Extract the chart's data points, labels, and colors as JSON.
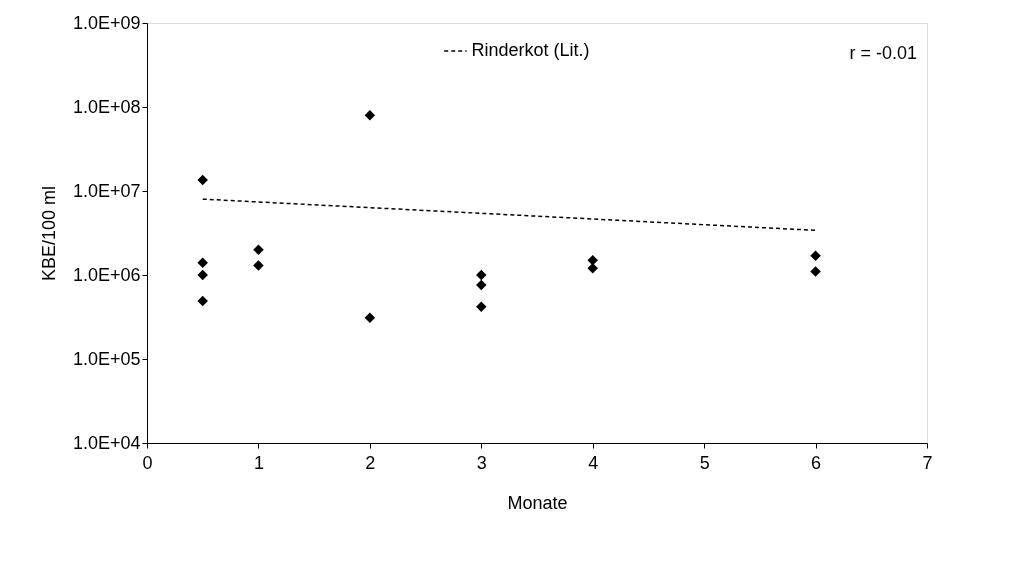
{
  "chart_data": {
    "type": "scatter",
    "xlabel": "Monate",
    "ylabel": "KBE/100 ml",
    "log": "y",
    "grid": false,
    "legend": "top",
    "marker": "diamond",
    "annotations": [
      "r = -0.01"
    ],
    "xlim": [
      0,
      7
    ],
    "xticks": [
      0,
      1,
      2,
      3,
      4,
      5,
      6,
      7
    ],
    "ylim": [
      10000,
      1000000000
    ],
    "yticks": [
      {
        "value": 10000,
        "label": "1.0E+04"
      },
      {
        "value": 100000,
        "label": "1.0E+05"
      },
      {
        "value": 1000000,
        "label": "1.0E+06"
      },
      {
        "value": 10000000,
        "label": "1.0E+07"
      },
      {
        "value": 100000000,
        "label": "1.0E+08"
      },
      {
        "value": 1000000000,
        "label": "1.0E+09"
      }
    ],
    "series": [
      {
        "color": "#000000",
        "x": [
          0.5,
          0.5,
          0.5,
          0.5,
          1,
          1,
          2,
          2,
          3,
          3,
          3,
          4,
          4,
          6,
          6
        ],
        "values": [
          13500000,
          1400000,
          1000000,
          490000,
          2000000,
          1300000,
          80000000,
          310000,
          1000000,
          760000,
          420000,
          1500000,
          1200000,
          1700000,
          1100000
        ]
      },
      {
        "type": "line",
        "name": "Rinderkot (Lit.)",
        "color": "#000000",
        "line_style": "dashed",
        "marker": "none",
        "x": [
          0.5,
          6
        ],
        "values": [
          8000000,
          3400000
        ]
      }
    ]
  }
}
